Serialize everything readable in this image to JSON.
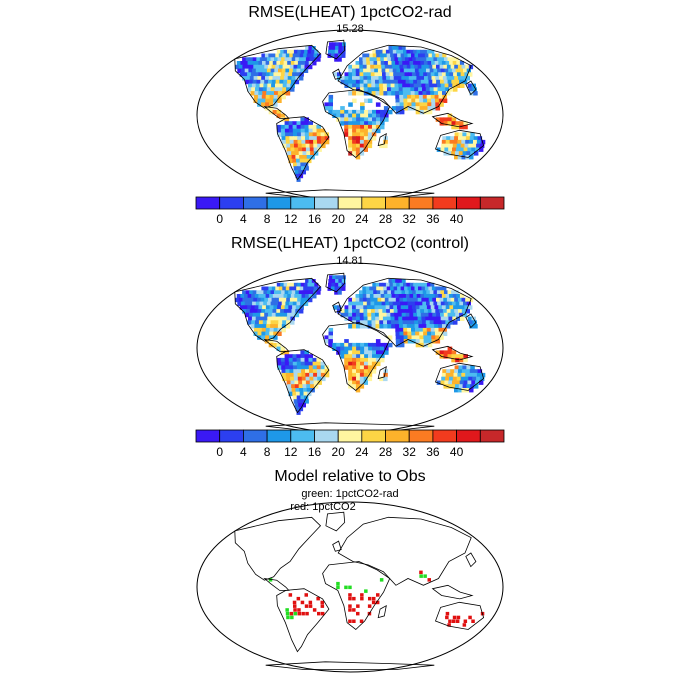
{
  "panels": [
    {
      "title": "RMSE(LHEAT) 1pctCO2-rad",
      "subtitle": "15.28",
      "seed": 11,
      "bias": 0.0
    },
    {
      "title": "RMSE(LHEAT) 1pctCO2 (control)",
      "subtitle": "14.81",
      "seed": 29,
      "bias": -0.4
    }
  ],
  "colorbar": {
    "colors": [
      "#3a19f5",
      "#2c3ff0",
      "#2f6fe6",
      "#1e98e8",
      "#4cbcf0",
      "#a9d8f0",
      "#fff6a0",
      "#fdd545",
      "#fdb22b",
      "#fb7b22",
      "#f23b1e",
      "#e0181c",
      "#c7282a"
    ],
    "labels": [
      "0",
      "4",
      "8",
      "12",
      "16",
      "20",
      "24",
      "28",
      "32",
      "36",
      "40"
    ]
  },
  "comparison": {
    "title": "Model relative to Obs",
    "legend_green": "green: 1pctCO2-rad",
    "legend_red": "red: 1pctCO2",
    "green_color": "#22dd22",
    "red_color": "#e01010"
  },
  "chart_data": {
    "type": "heatmap",
    "maps": [
      {
        "title": "RMSE(LHEAT) 1pctCO2-rad",
        "global_value": 15.28
      },
      {
        "title": "RMSE(LHEAT) 1pctCO2 (control)",
        "global_value": 14.81
      }
    ],
    "colorbar_levels": [
      0,
      4,
      8,
      12,
      16,
      20,
      24,
      28,
      32,
      36,
      40
    ]
  }
}
